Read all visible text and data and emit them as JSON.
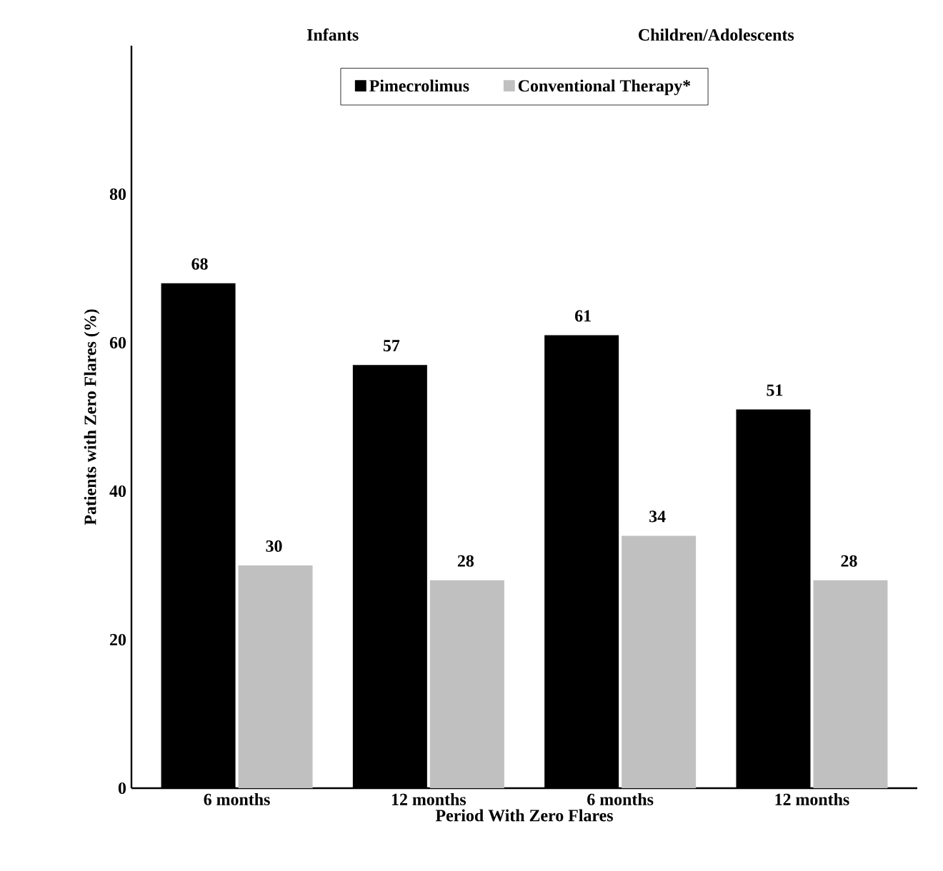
{
  "chart_data": {
    "type": "bar",
    "xlabel": "Period With Zero Flares",
    "ylabel": "Patients with Zero Flares (%)",
    "categories": [
      "6 months",
      "12 months",
      "6 months",
      "12 months"
    ],
    "series": [
      {
        "name": "Pimecrolimus",
        "color": "#000000",
        "values": [
          68,
          57,
          61,
          51
        ]
      },
      {
        "name": "Conventional Therapy*",
        "color": "#c0c0c0",
        "values": [
          30,
          28,
          34,
          28
        ]
      }
    ],
    "ylim": [
      0,
      100
    ],
    "yticks": [
      0,
      20,
      40,
      60,
      80
    ],
    "data_labels": true,
    "legend": "top",
    "grid": false,
    "annotations": [
      "Infants",
      "Children/Adolescents"
    ]
  }
}
